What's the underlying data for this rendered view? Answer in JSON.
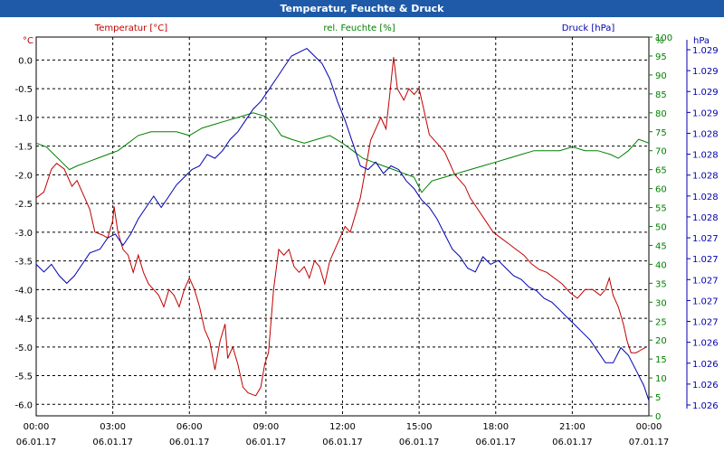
{
  "window": {
    "title": "Temperatur, Feuchte & Druck"
  },
  "colors": {
    "temperature": "#c00000",
    "humidity": "#008000",
    "pressure": "#0000b0",
    "title_bar": "#1e5aa8",
    "grid": "#000000"
  },
  "chart_data": {
    "type": "line",
    "title": "Temperatur, Feuchte & Druck",
    "grid": true,
    "x_ticks": [
      {
        "time": "00:00",
        "date": "06.01.17"
      },
      {
        "time": "03:00",
        "date": "06.01.17"
      },
      {
        "time": "06:00",
        "date": "06.01.17"
      },
      {
        "time": "09:00",
        "date": "06.01.17"
      },
      {
        "time": "12:00",
        "date": "06.01.17"
      },
      {
        "time": "15:00",
        "date": "06.01.17"
      },
      {
        "time": "18:00",
        "date": "06.01.17"
      },
      {
        "time": "21:00",
        "date": "06.01.17"
      },
      {
        "time": "00:00",
        "date": "07.01.17"
      }
    ],
    "x_range_hours": [
      0,
      24
    ],
    "axes": {
      "temperature": {
        "label": "Temperatur [°C]",
        "unit": "°C",
        "ylim": [
          -6.2,
          0.4
        ],
        "tick_labels": [
          "0.0",
          "-0.5",
          "-1.0",
          "-1.5",
          "-2.0",
          "-2.5",
          "-3.0",
          "-3.5",
          "-4.0",
          "-4.5",
          "-5.0",
          "-5.5",
          "-6.0"
        ]
      },
      "humidity": {
        "label": "rel. Feuchte [%]",
        "unit": "%",
        "ylim": [
          0,
          100
        ],
        "tick_labels": [
          "100",
          "95",
          "90",
          "85",
          "80",
          "75",
          "70",
          "65",
          "60",
          "55",
          "50",
          "45",
          "40",
          "35",
          "30",
          "25",
          "20",
          "15",
          "10",
          "5",
          "0"
        ]
      },
      "pressure": {
        "label": "Druck [hPa]",
        "unit": "hPa",
        "tick_labels": [
          "1.029",
          "1.029",
          "1.029",
          "1.029",
          "1.028",
          "1.028",
          "1.028",
          "1.028",
          "1.028",
          "1.027",
          "1.027",
          "1.027",
          "1.027",
          "1.027",
          "1.026",
          "1.026",
          "1.026",
          "1.026"
        ]
      }
    },
    "series": [
      {
        "name": "Temperatur [°C]",
        "axis": "temperature",
        "points": [
          [
            0,
            -2.4
          ],
          [
            0.3,
            -2.3
          ],
          [
            0.6,
            -1.9
          ],
          [
            0.8,
            -1.8
          ],
          [
            1.1,
            -1.9
          ],
          [
            1.4,
            -2.2
          ],
          [
            1.6,
            -2.1
          ],
          [
            1.9,
            -2.4
          ],
          [
            2.1,
            -2.6
          ],
          [
            2.3,
            -3.0
          ],
          [
            2.6,
            -3.05
          ],
          [
            2.8,
            -3.1
          ],
          [
            3.0,
            -2.8
          ],
          [
            3.05,
            -2.55
          ],
          [
            3.2,
            -3.0
          ],
          [
            3.4,
            -3.3
          ],
          [
            3.6,
            -3.4
          ],
          [
            3.8,
            -3.7
          ],
          [
            4.0,
            -3.4
          ],
          [
            4.2,
            -3.7
          ],
          [
            4.4,
            -3.9
          ],
          [
            4.6,
            -4.0
          ],
          [
            4.8,
            -4.1
          ],
          [
            5.0,
            -4.3
          ],
          [
            5.2,
            -4.0
          ],
          [
            5.4,
            -4.1
          ],
          [
            5.6,
            -4.3
          ],
          [
            5.8,
            -4.0
          ],
          [
            6.0,
            -3.8
          ],
          [
            6.2,
            -4.0
          ],
          [
            6.4,
            -4.3
          ],
          [
            6.6,
            -4.7
          ],
          [
            6.8,
            -4.9
          ],
          [
            7.0,
            -5.4
          ],
          [
            7.2,
            -4.9
          ],
          [
            7.4,
            -4.6
          ],
          [
            7.5,
            -5.2
          ],
          [
            7.7,
            -5.0
          ],
          [
            7.9,
            -5.3
          ],
          [
            8.1,
            -5.7
          ],
          [
            8.3,
            -5.8
          ],
          [
            8.6,
            -5.85
          ],
          [
            8.8,
            -5.7
          ],
          [
            8.95,
            -5.3
          ],
          [
            9.1,
            -5.1
          ],
          [
            9.3,
            -4.0
          ],
          [
            9.5,
            -3.3
          ],
          [
            9.7,
            -3.4
          ],
          [
            9.9,
            -3.3
          ],
          [
            10.1,
            -3.6
          ],
          [
            10.3,
            -3.7
          ],
          [
            10.5,
            -3.6
          ],
          [
            10.7,
            -3.8
          ],
          [
            10.9,
            -3.5
          ],
          [
            11.1,
            -3.6
          ],
          [
            11.3,
            -3.9
          ],
          [
            11.5,
            -3.5
          ],
          [
            11.7,
            -3.3
          ],
          [
            11.9,
            -3.1
          ],
          [
            12.1,
            -2.9
          ],
          [
            12.3,
            -3.0
          ],
          [
            12.5,
            -2.7
          ],
          [
            12.7,
            -2.4
          ],
          [
            12.9,
            -1.9
          ],
          [
            13.1,
            -1.4
          ],
          [
            13.3,
            -1.2
          ],
          [
            13.5,
            -1.0
          ],
          [
            13.7,
            -1.2
          ],
          [
            13.85,
            -0.6
          ],
          [
            14.0,
            0.05
          ],
          [
            14.15,
            -0.5
          ],
          [
            14.4,
            -0.7
          ],
          [
            14.6,
            -0.5
          ],
          [
            14.8,
            -0.6
          ],
          [
            15.0,
            -0.5
          ],
          [
            15.2,
            -0.9
          ],
          [
            15.4,
            -1.3
          ],
          [
            15.6,
            -1.4
          ],
          [
            15.8,
            -1.5
          ],
          [
            16.0,
            -1.6
          ],
          [
            16.2,
            -1.8
          ],
          [
            16.4,
            -2.0
          ],
          [
            16.6,
            -2.1
          ],
          [
            16.8,
            -2.2
          ],
          [
            17.0,
            -2.4
          ],
          [
            17.3,
            -2.6
          ],
          [
            17.6,
            -2.8
          ],
          [
            17.9,
            -3.0
          ],
          [
            18.2,
            -3.1
          ],
          [
            18.5,
            -3.2
          ],
          [
            18.8,
            -3.3
          ],
          [
            19.1,
            -3.4
          ],
          [
            19.4,
            -3.55
          ],
          [
            19.7,
            -3.65
          ],
          [
            20.0,
            -3.7
          ],
          [
            20.3,
            -3.8
          ],
          [
            20.6,
            -3.9
          ],
          [
            20.9,
            -4.05
          ],
          [
            21.2,
            -4.15
          ],
          [
            21.5,
            -4.0
          ],
          [
            21.8,
            -4.0
          ],
          [
            22.1,
            -4.1
          ],
          [
            22.3,
            -4.0
          ],
          [
            22.45,
            -3.8
          ],
          [
            22.6,
            -4.1
          ],
          [
            22.8,
            -4.3
          ],
          [
            23.0,
            -4.6
          ],
          [
            23.15,
            -4.9
          ],
          [
            23.3,
            -5.1
          ],
          [
            23.5,
            -5.1
          ],
          [
            23.7,
            -5.05
          ],
          [
            23.9,
            -5.0
          ]
        ]
      },
      {
        "name": "rel. Feuchte [%]",
        "axis": "humidity",
        "points": [
          [
            0,
            72
          ],
          [
            0.4,
            71
          ],
          [
            0.7,
            69
          ],
          [
            1.0,
            67
          ],
          [
            1.3,
            65
          ],
          [
            1.6,
            66
          ],
          [
            2.0,
            67
          ],
          [
            2.4,
            68
          ],
          [
            2.8,
            69
          ],
          [
            3.2,
            70
          ],
          [
            3.6,
            72
          ],
          [
            4.0,
            74
          ],
          [
            4.5,
            75
          ],
          [
            5.0,
            75
          ],
          [
            5.5,
            75
          ],
          [
            6.0,
            74
          ],
          [
            6.5,
            76
          ],
          [
            7.0,
            77
          ],
          [
            7.5,
            78
          ],
          [
            8.0,
            79
          ],
          [
            8.5,
            80
          ],
          [
            9.0,
            79
          ],
          [
            9.3,
            77
          ],
          [
            9.6,
            74
          ],
          [
            10.0,
            73
          ],
          [
            10.5,
            72
          ],
          [
            11.0,
            73
          ],
          [
            11.5,
            74
          ],
          [
            12.0,
            72
          ],
          [
            12.4,
            70
          ],
          [
            12.8,
            68
          ],
          [
            13.2,
            67
          ],
          [
            13.6,
            66
          ],
          [
            14.0,
            65
          ],
          [
            14.4,
            64
          ],
          [
            14.8,
            63
          ],
          [
            15.1,
            59
          ],
          [
            15.5,
            62
          ],
          [
            16.0,
            63
          ],
          [
            16.5,
            64
          ],
          [
            17.0,
            65
          ],
          [
            17.5,
            66
          ],
          [
            18.0,
            67
          ],
          [
            18.5,
            68
          ],
          [
            19.0,
            69
          ],
          [
            19.5,
            70
          ],
          [
            20.0,
            70
          ],
          [
            20.5,
            70
          ],
          [
            21.0,
            71
          ],
          [
            21.5,
            70
          ],
          [
            22.0,
            70
          ],
          [
            22.5,
            69
          ],
          [
            22.8,
            68
          ],
          [
            23.2,
            70
          ],
          [
            23.6,
            73
          ],
          [
            24.0,
            72
          ]
        ]
      },
      {
        "name": "Druck [hPa]",
        "axis": "pressure",
        "relative_level": "0 = bottom, 1 = top of plot",
        "points": [
          [
            0,
            0.4
          ],
          [
            0.3,
            0.38
          ],
          [
            0.6,
            0.4
          ],
          [
            0.9,
            0.37
          ],
          [
            1.2,
            0.35
          ],
          [
            1.5,
            0.37
          ],
          [
            1.8,
            0.4
          ],
          [
            2.1,
            0.43
          ],
          [
            2.5,
            0.44
          ],
          [
            2.8,
            0.47
          ],
          [
            3.1,
            0.48
          ],
          [
            3.4,
            0.45
          ],
          [
            3.7,
            0.48
          ],
          [
            4.0,
            0.52
          ],
          [
            4.3,
            0.55
          ],
          [
            4.6,
            0.58
          ],
          [
            4.9,
            0.55
          ],
          [
            5.2,
            0.58
          ],
          [
            5.5,
            0.61
          ],
          [
            5.8,
            0.63
          ],
          [
            6.1,
            0.65
          ],
          [
            6.4,
            0.66
          ],
          [
            6.7,
            0.69
          ],
          [
            7.0,
            0.68
          ],
          [
            7.3,
            0.7
          ],
          [
            7.6,
            0.73
          ],
          [
            7.9,
            0.75
          ],
          [
            8.2,
            0.78
          ],
          [
            8.5,
            0.81
          ],
          [
            8.8,
            0.83
          ],
          [
            9.1,
            0.86
          ],
          [
            9.4,
            0.89
          ],
          [
            9.7,
            0.92
          ],
          [
            10.0,
            0.95
          ],
          [
            10.3,
            0.96
          ],
          [
            10.6,
            0.97
          ],
          [
            10.9,
            0.95
          ],
          [
            11.2,
            0.93
          ],
          [
            11.5,
            0.89
          ],
          [
            11.8,
            0.83
          ],
          [
            12.1,
            0.78
          ],
          [
            12.4,
            0.72
          ],
          [
            12.7,
            0.66
          ],
          [
            13.0,
            0.65
          ],
          [
            13.3,
            0.67
          ],
          [
            13.6,
            0.64
          ],
          [
            13.9,
            0.66
          ],
          [
            14.2,
            0.65
          ],
          [
            14.5,
            0.62
          ],
          [
            14.8,
            0.6
          ],
          [
            15.1,
            0.57
          ],
          [
            15.4,
            0.55
          ],
          [
            15.7,
            0.52
          ],
          [
            16.0,
            0.48
          ],
          [
            16.3,
            0.44
          ],
          [
            16.6,
            0.42
          ],
          [
            16.9,
            0.39
          ],
          [
            17.2,
            0.38
          ],
          [
            17.5,
            0.42
          ],
          [
            17.8,
            0.4
          ],
          [
            18.1,
            0.41
          ],
          [
            18.4,
            0.39
          ],
          [
            18.7,
            0.37
          ],
          [
            19.0,
            0.36
          ],
          [
            19.3,
            0.34
          ],
          [
            19.6,
            0.33
          ],
          [
            19.9,
            0.31
          ],
          [
            20.2,
            0.3
          ],
          [
            20.5,
            0.28
          ],
          [
            20.8,
            0.26
          ],
          [
            21.1,
            0.24
          ],
          [
            21.4,
            0.22
          ],
          [
            21.7,
            0.2
          ],
          [
            22.0,
            0.17
          ],
          [
            22.3,
            0.14
          ],
          [
            22.6,
            0.14
          ],
          [
            22.9,
            0.18
          ],
          [
            23.2,
            0.16
          ],
          [
            23.5,
            0.12
          ],
          [
            23.8,
            0.08
          ],
          [
            24.0,
            0.04
          ]
        ]
      }
    ]
  }
}
